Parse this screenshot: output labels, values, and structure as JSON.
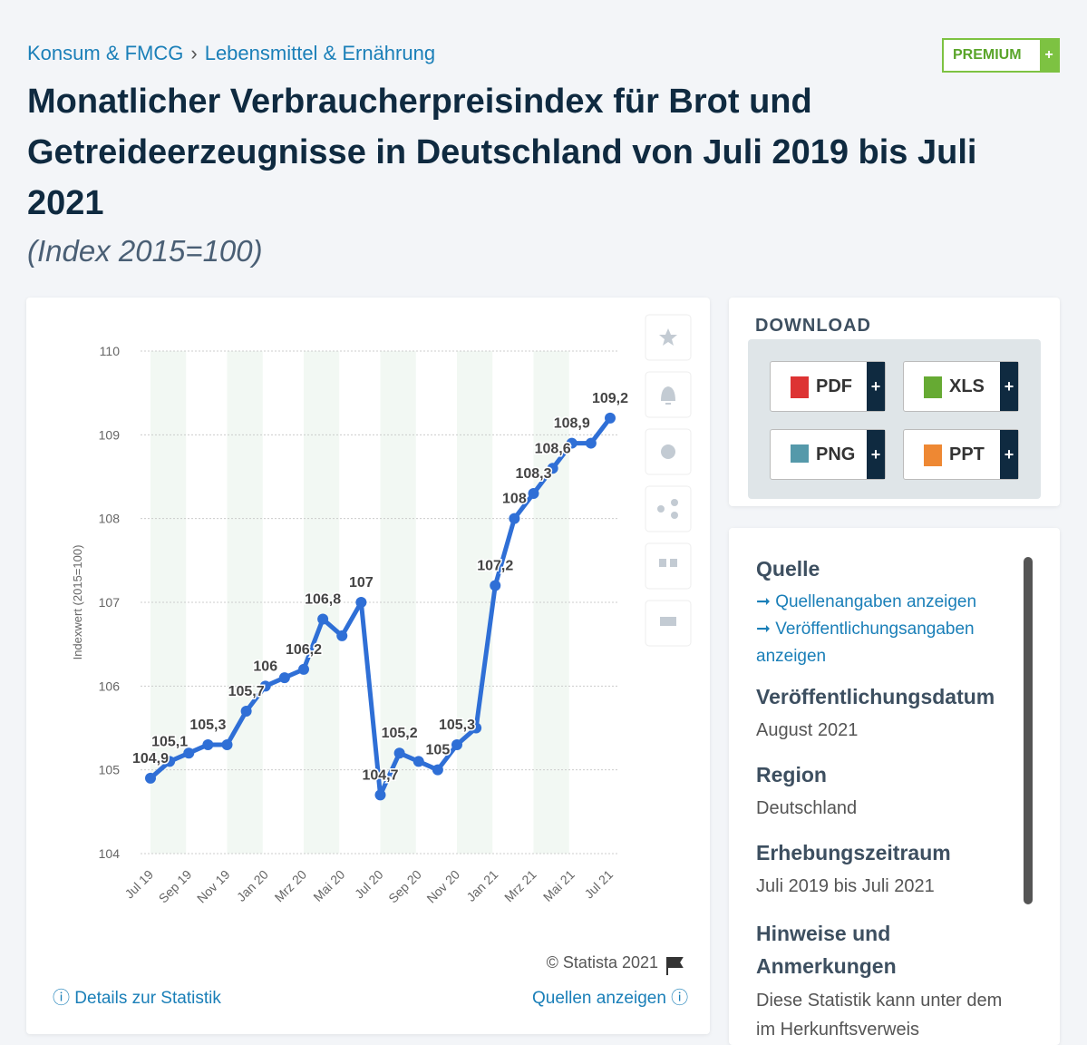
{
  "breadcrumb": [
    "Konsum & FMCG",
    "Lebensmittel & Ernährung"
  ],
  "premium": "PREMIUM",
  "chart_data": {
    "type": "line",
    "title": "Monatlicher Verbraucherpreisindex für Brot und Getreideerzeugnisse in Deutschland von Juli 2019 bis Juli 2021",
    "subtitle": "(Index 2015=100)",
    "y_label": "Indexwert (2015=100)",
    "categories": [
      "Jul 19",
      null,
      "Sep 19",
      null,
      "Nov 19",
      null,
      "Jan 20",
      null,
      "Mrz 20",
      null,
      "Mai 20",
      null,
      "Jul 20",
      null,
      "Sep 20",
      null,
      "Nov 20",
      null,
      "Jan 21",
      null,
      "Mrz 21",
      null,
      "Mai 21",
      null,
      "Jul 21"
    ],
    "series": [
      {
        "name": "Indexwert",
        "color": "#2f6fd6",
        "values": [
          104.9,
          105.1,
          105.2,
          105.3,
          105.3,
          105.7,
          106.0,
          106.1,
          106.2,
          106.8,
          106.6,
          107.0,
          104.7,
          105.2,
          105.1,
          105.0,
          105.3,
          105.5,
          107.2,
          108.0,
          108.3,
          108.6,
          108.9,
          108.9,
          109.2
        ],
        "value_labels": [
          "104,9",
          "105,1",
          null,
          "105,3",
          null,
          "105,7",
          "106",
          null,
          "106,2",
          "106,8",
          null,
          "107",
          "104,7",
          "105,2",
          null,
          "105",
          "105,3",
          null,
          "107,2",
          "108",
          "108,3",
          "108,6",
          "108,9",
          null,
          "109,2"
        ]
      }
    ],
    "ylim": [
      104,
      110
    ],
    "yticks": [
      104,
      105,
      106,
      107,
      108,
      109,
      110
    ],
    "grid": true,
    "credit": "© Statista 2021"
  },
  "links": {
    "details": "Details zur Statistik",
    "sources": "Quellen anzeigen"
  },
  "download": {
    "title": "DOWNLOAD",
    "buttons": [
      "PDF",
      "XLS",
      "PNG",
      "PPT"
    ]
  },
  "info": {
    "source_title": "Quelle",
    "source_links": [
      "Quellenangaben anzeigen",
      "Veröffentlichungsangaben anzeigen"
    ],
    "date_title": "Veröffentlichungsdatum",
    "date": "August 2021",
    "region_title": "Region",
    "region": "Deutschland",
    "period_title": "Erhebungszeitraum",
    "period": "Juli 2019 bis Juli 2021",
    "notes_title": "Hinweise und Anmerkungen",
    "notes": "Diese Statistik kann unter dem im Herkunftsverweis"
  }
}
